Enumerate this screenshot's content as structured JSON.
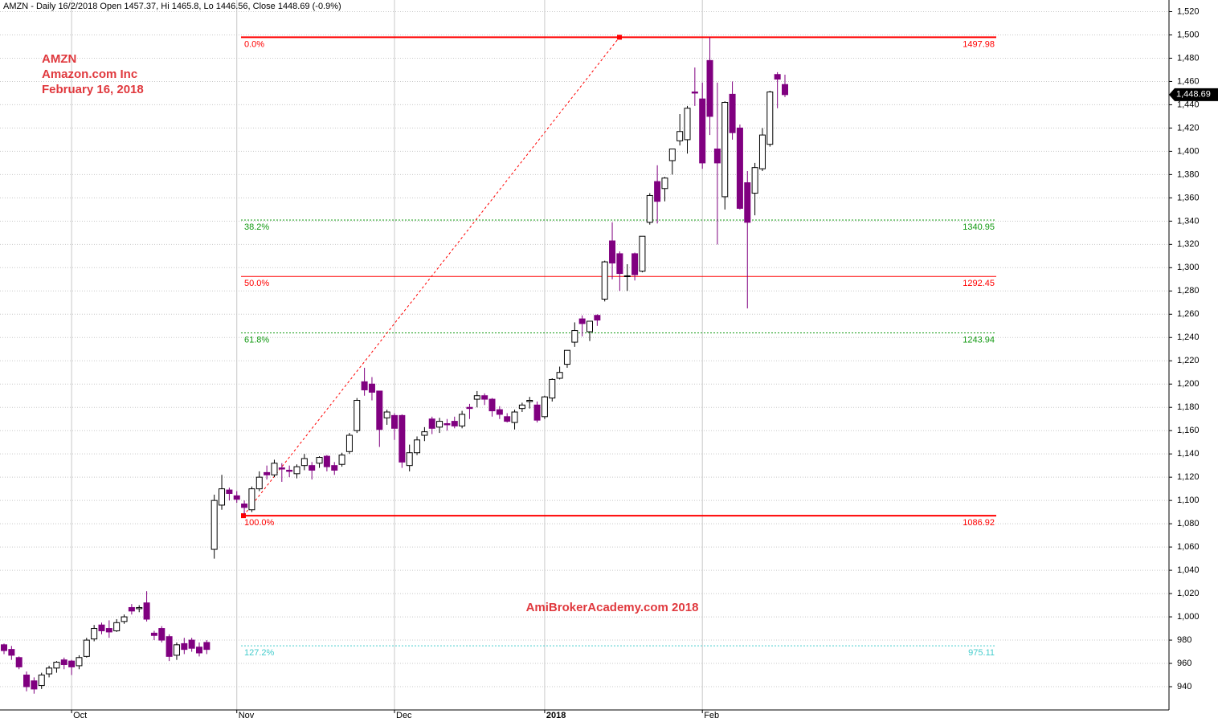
{
  "chart_data": {
    "type": "candlestick",
    "header": "AMZN - Daily 16/2/2018 Open 1457.37, Hi 1465.8, Lo 1446.56, Close 1448.69 (-0.9%)",
    "annotations": [
      "AMZN",
      "Amazon.com Inc",
      "February 16, 2018"
    ],
    "watermark": "AmiBrokerAcademy.com 2018",
    "up_color": "#ffffff",
    "down_color": "#800080",
    "outline_color": "#000000",
    "grid": true,
    "ylim": [
      920,
      1530
    ],
    "yticks": [
      940,
      960,
      980,
      {
        "value": 1000,
        "label": "1,000"
      },
      {
        "value": 1020,
        "label": "1,020"
      },
      {
        "value": 1040,
        "label": "1,040"
      },
      {
        "value": 1060,
        "label": "1,060"
      },
      {
        "value": 1080,
        "label": "1,080"
      },
      {
        "value": 1100,
        "label": "1,100"
      },
      {
        "value": 1120,
        "label": "1,120"
      },
      {
        "value": 1140,
        "label": "1,140"
      },
      {
        "value": 1160,
        "label": "1,160"
      },
      {
        "value": 1180,
        "label": "1,180"
      },
      {
        "value": 1200,
        "label": "1,200"
      },
      {
        "value": 1220,
        "label": "1,220"
      },
      {
        "value": 1240,
        "label": "1,240"
      },
      {
        "value": 1260,
        "label": "1,260"
      },
      {
        "value": 1280,
        "label": "1,280"
      },
      {
        "value": 1300,
        "label": "1,300"
      },
      {
        "value": 1320,
        "label": "1,320"
      },
      {
        "value": 1340,
        "label": "1,340"
      },
      {
        "value": 1360,
        "label": "1,360"
      },
      {
        "value": 1380,
        "label": "1,380"
      },
      {
        "value": 1400,
        "label": "1,400"
      },
      {
        "value": 1420,
        "label": "1,420"
      },
      {
        "value": 1440,
        "label": "1,440"
      },
      {
        "value": 1460,
        "label": "1,460"
      },
      {
        "value": 1480,
        "label": "1,480"
      },
      {
        "value": 1500,
        "label": "1,500"
      },
      {
        "value": 1520,
        "label": "1,520"
      }
    ],
    "last_price": {
      "value": 1448.69,
      "label": "1,448.69"
    },
    "levels": [
      {
        "label": "0.0%",
        "value": 1497.98,
        "color": "#ff0000",
        "style": "solid",
        "width": 2
      },
      {
        "label": "38.2%",
        "value": 1340.95,
        "color": "#119911",
        "style": "dotted",
        "width": 1
      },
      {
        "label": "50.0%",
        "value": 1292.45,
        "color": "#ff0000",
        "style": "solid",
        "width": 1
      },
      {
        "label": "61.8%",
        "value": 1243.94,
        "color": "#119911",
        "style": "dotted",
        "width": 1
      },
      {
        "label": "100.0%",
        "value": 1086.92,
        "color": "#ff0000",
        "style": "solid",
        "width": 2
      },
      {
        "label": "127.2%",
        "value": 975.11,
        "color": "#44cccc",
        "style": "dotted",
        "width": 1
      }
    ],
    "categories": [
      null,
      null,
      null,
      null,
      null,
      null,
      null,
      null,
      null,
      "Oct",
      null,
      null,
      null,
      null,
      null,
      null,
      null,
      null,
      null,
      null,
      null,
      null,
      null,
      null,
      null,
      null,
      null,
      null,
      null,
      null,
      null,
      "Nov",
      null,
      null,
      null,
      null,
      null,
      null,
      null,
      null,
      null,
      null,
      null,
      null,
      null,
      null,
      null,
      null,
      null,
      null,
      null,
      null,
      "Dec",
      null,
      null,
      null,
      null,
      null,
      null,
      null,
      null,
      null,
      null,
      null,
      null,
      null,
      null,
      null,
      null,
      null,
      null,
      null,
      "2018",
      null,
      null,
      null,
      null,
      null,
      null,
      null,
      null,
      null,
      null,
      null,
      null,
      null,
      null,
      null,
      null,
      null,
      null,
      null,
      null,
      "Feb",
      null,
      null,
      null,
      null,
      null,
      null,
      null,
      null,
      null,
      null,
      null
    ],
    "open": [
      976,
      972,
      965,
      950,
      945,
      941,
      951,
      956,
      963,
      962,
      958,
      966,
      981,
      993,
      990,
      988,
      996,
      1008,
      1007,
      1012,
      986,
      990,
      983,
      967,
      977,
      980,
      974,
      978,
      1058,
      1096,
      1109,
      1104,
      1097,
      1092,
      1110,
      1124,
      1122,
      1128,
      1126,
      1123,
      1130,
      1130,
      1132,
      1138,
      1130,
      1131,
      1142,
      1160,
      1202,
      1200,
      1194,
      1171,
      1173,
      1173,
      1130,
      1141,
      1156,
      1170,
      1163,
      1166,
      1168,
      1164,
      1180,
      1187,
      1190,
      1187,
      1178,
      1172,
      1167,
      1179,
      1185,
      1182,
      1172,
      1188,
      1205,
      1217,
      1236,
      1256,
      1245,
      1259,
      1273,
      1323,
      1312,
      1293,
      1312,
      1297,
      1339,
      1374,
      1368,
      1392,
      1409,
      1410,
      1451,
      1445,
      1478,
      1402,
      1361,
      1449,
      1420,
      1373,
      1364,
      1385,
      1406,
      1466,
      1457.37
    ],
    "high": [
      977,
      975,
      966,
      953,
      948,
      952,
      958,
      962,
      965,
      963,
      967,
      982,
      993,
      995,
      997,
      998,
      1002,
      1011,
      1010,
      1022,
      988,
      992,
      985,
      978,
      982,
      982,
      978,
      980,
      1105,
      1122,
      1111,
      1108,
      1100,
      1112,
      1125,
      1130,
      1135,
      1132,
      1130,
      1131,
      1140,
      1133,
      1138,
      1139,
      1133,
      1141,
      1158,
      1188,
      1214,
      1206,
      1194,
      1178,
      1175,
      1174,
      1148,
      1155,
      1163,
      1172,
      1171,
      1170,
      1172,
      1177,
      1183,
      1194,
      1192,
      1188,
      1181,
      1175,
      1178,
      1184,
      1189,
      1185,
      1190,
      1205,
      1215,
      1229,
      1253,
      1259,
      1254,
      1260,
      1306,
      1339,
      1314,
      1303,
      1313,
      1327,
      1364,
      1388,
      1378,
      1402,
      1432,
      1439,
      1472,
      1459,
      1498,
      1459,
      1443,
      1460,
      1423,
      1383,
      1390,
      1420,
      1452,
      1468,
      1465.8
    ],
    "low": [
      968,
      963,
      955,
      936,
      934,
      938,
      948,
      952,
      955,
      950,
      955,
      965,
      979,
      985,
      982,
      987,
      994,
      1002,
      1004,
      996,
      980,
      978,
      962,
      963,
      968,
      970,
      966,
      968,
      1050,
      1092,
      1100,
      1098,
      1088,
      1090,
      1108,
      1118,
      1120,
      1116,
      1120,
      1119,
      1126,
      1118,
      1128,
      1125,
      1122,
      1129,
      1140,
      1158,
      1190,
      1186,
      1146,
      1165,
      1152,
      1128,
      1125,
      1139,
      1151,
      1157,
      1158,
      1160,
      1162,
      1162,
      1170,
      1180,
      1182,
      1172,
      1170,
      1167,
      1161,
      1176,
      1179,
      1167,
      1170,
      1185,
      1204,
      1214,
      1232,
      1241,
      1237,
      1250,
      1271,
      1290,
      1280,
      1280,
      1289,
      1296,
      1337,
      1338,
      1357,
      1380,
      1405,
      1398,
      1439,
      1385,
      1414,
      1320,
      1350,
      1410,
      1350,
      1265,
      1345,
      1383,
      1404,
      1437,
      1446.56
    ],
    "close": [
      971,
      967,
      957,
      940,
      938,
      950,
      956,
      961,
      959,
      957,
      965,
      980,
      990,
      988,
      987,
      995,
      1000,
      1005,
      1008,
      998,
      984,
      980,
      966,
      976,
      972,
      973,
      969,
      972,
      1100,
      1110,
      1106,
      1101,
      1094,
      1110,
      1120,
      1122,
      1132,
      1127,
      1125,
      1129,
      1136,
      1126,
      1137,
      1129,
      1126,
      1139,
      1156,
      1186,
      1195,
      1193,
      1161,
      1176,
      1162,
      1133,
      1141,
      1152,
      1159,
      1162,
      1168,
      1165,
      1164,
      1174,
      1179,
      1190,
      1187,
      1177,
      1174,
      1168,
      1176,
      1182,
      1186,
      1169,
      1189,
      1204,
      1210,
      1229,
      1246,
      1252,
      1254,
      1255,
      1305,
      1304,
      1295,
      1293,
      1294,
      1327,
      1362,
      1357,
      1377,
      1402,
      1417,
      1437,
      1450,
      1390,
      1430,
      1390,
      1442,
      1416,
      1351,
      1339,
      1386,
      1414,
      1451,
      1462,
      1448.69
    ]
  }
}
